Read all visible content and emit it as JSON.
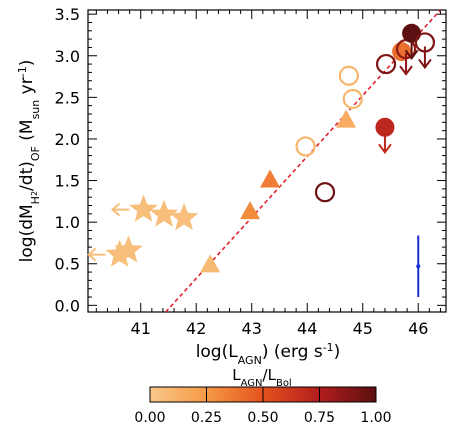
{
  "chart_data": {
    "type": "scatter",
    "xlabel": "log(L",
    "xlabel_sub": "AGN",
    "xlabel_tail": ") (erg s",
    "xlabel_sup": "-1",
    "xlabel_end": ")",
    "ylabel_parts": {
      "a": "log(dM",
      "b": "H",
      "c": "2",
      "d": "/dt)",
      "e": "OF",
      "f": " (M",
      "g": "sun",
      "h": " yr",
      "i": "-1",
      "j": ")"
    },
    "xlim": [
      40.05,
      46.5
    ],
    "ylim": [
      -0.08,
      3.55
    ],
    "x_ticks": [
      41,
      42,
      43,
      44,
      45,
      46
    ],
    "x_tick_labels": [
      "41",
      "42",
      "43",
      "44",
      "45",
      "46"
    ],
    "y_ticks": [
      0.0,
      0.5,
      1.0,
      1.5,
      2.0,
      2.5,
      3.0,
      3.5
    ],
    "y_tick_labels": [
      "0.0",
      "0.5",
      "1.0",
      "1.5",
      "2.0",
      "2.5",
      "3.0",
      "3.5"
    ],
    "grid": false,
    "colorbar": {
      "title_main": "L",
      "title_sub1": "AGN",
      "title_slash": "/L",
      "title_sub2": "Bol",
      "range": [
        0,
        1
      ],
      "ticks": [
        0.0,
        0.25,
        0.5,
        0.75,
        1.0
      ],
      "tick_labels": [
        "0.00",
        "0.25",
        "0.50",
        "0.75",
        "1.00"
      ],
      "colors": [
        "#f9c88a",
        "#f59a45",
        "#e5521e",
        "#b21d1d",
        "#5c0f10"
      ]
    },
    "fit_line": {
      "color": "#e0202a",
      "style": "dashed",
      "points": [
        [
          41.45,
          -0.08
        ],
        [
          46.4,
          3.55
        ]
      ]
    },
    "error_bar": {
      "x": 46.0,
      "y": 0.47,
      "yerr_low": 0.37,
      "yerr_high": 0.37,
      "color": "#1a2fd0"
    },
    "points": [
      {
        "marker": "star",
        "x": 40.62,
        "y": 0.61,
        "ratio": 0.05,
        "filled": true,
        "upper_limit": false,
        "left_arrow": true
      },
      {
        "marker": "star",
        "x": 40.78,
        "y": 0.66,
        "ratio": 0.05,
        "filled": true,
        "upper_limit": false,
        "left_arrow": false
      },
      {
        "marker": "star",
        "x": 41.05,
        "y": 1.15,
        "ratio": 0.05,
        "filled": true,
        "upper_limit": false,
        "left_arrow": true
      },
      {
        "marker": "star",
        "x": 41.42,
        "y": 1.09,
        "ratio": 0.05,
        "filled": true,
        "upper_limit": false,
        "left_arrow": false
      },
      {
        "marker": "star",
        "x": 41.78,
        "y": 1.05,
        "ratio": 0.05,
        "filled": true,
        "upper_limit": false,
        "left_arrow": false
      },
      {
        "marker": "triangle",
        "x": 42.25,
        "y": 0.48,
        "ratio": 0.08,
        "filled": true,
        "upper_limit": false,
        "left_arrow": false
      },
      {
        "marker": "triangle",
        "x": 42.97,
        "y": 1.12,
        "ratio": 0.3,
        "filled": true,
        "upper_limit": false,
        "left_arrow": false
      },
      {
        "marker": "triangle",
        "x": 43.33,
        "y": 1.5,
        "ratio": 0.35,
        "filled": true,
        "upper_limit": false,
        "left_arrow": false
      },
      {
        "marker": "triangle",
        "x": 44.7,
        "y": 2.22,
        "ratio": 0.15,
        "filled": true,
        "upper_limit": false,
        "left_arrow": false
      },
      {
        "marker": "circle",
        "x": 43.97,
        "y": 1.91,
        "ratio": 0.1,
        "filled": false,
        "upper_limit": false,
        "left_arrow": false
      },
      {
        "marker": "circle",
        "x": 44.75,
        "y": 2.76,
        "ratio": 0.1,
        "filled": false,
        "upper_limit": false,
        "left_arrow": false
      },
      {
        "marker": "circle",
        "x": 44.82,
        "y": 2.48,
        "ratio": 0.1,
        "filled": false,
        "upper_limit": false,
        "left_arrow": false
      },
      {
        "marker": "circle",
        "x": 44.32,
        "y": 1.36,
        "ratio": 0.95,
        "filled": false,
        "upper_limit": false,
        "left_arrow": false
      },
      {
        "marker": "circle",
        "x": 45.4,
        "y": 2.14,
        "ratio": 0.7,
        "filled": true,
        "upper_limit": true,
        "left_arrow": false
      },
      {
        "marker": "circle",
        "x": 45.42,
        "y": 2.9,
        "ratio": 0.9,
        "filled": false,
        "upper_limit": false,
        "left_arrow": false
      },
      {
        "marker": "circle",
        "x": 45.7,
        "y": 3.05,
        "ratio": 0.4,
        "filled": true,
        "upper_limit": false,
        "left_arrow": false
      },
      {
        "marker": "circle",
        "x": 45.78,
        "y": 3.08,
        "ratio": 0.85,
        "filled": false,
        "upper_limit": true,
        "left_arrow": false
      },
      {
        "marker": "circle",
        "x": 45.88,
        "y": 3.27,
        "ratio": 1.0,
        "filled": true,
        "upper_limit": true,
        "left_arrow": false
      },
      {
        "marker": "circle",
        "x": 46.12,
        "y": 3.16,
        "ratio": 0.9,
        "filled": false,
        "upper_limit": true,
        "left_arrow": false
      }
    ]
  }
}
